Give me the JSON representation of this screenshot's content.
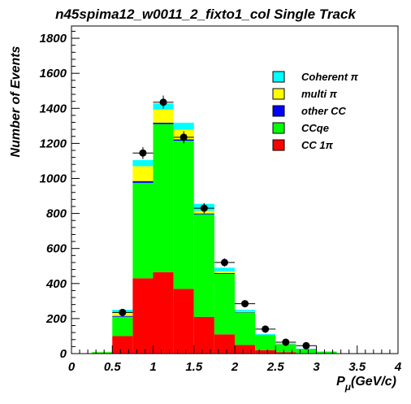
{
  "chart_data": {
    "type": "bar",
    "stacked": true,
    "title": "n45spima12_w0011_2_fixto1_col Single Track",
    "xlabel": "P_{μ}(GeV/c)",
    "xlabel_main": "P",
    "xlabel_sub": "μ",
    "xlabel_unit": "(GeV/c)",
    "ylabel": "Number of Events",
    "xlim": [
      0,
      4
    ],
    "ylim": [
      0,
      1870
    ],
    "x_ticks": [
      0,
      0.5,
      1,
      1.5,
      2,
      2.5,
      3,
      3.5,
      4
    ],
    "x_tick_labels": [
      "0",
      "0.5",
      "1",
      "1.5",
      "2",
      "2.5",
      "3",
      "3.5",
      "4"
    ],
    "y_ticks": [
      0,
      200,
      400,
      600,
      800,
      1000,
      1200,
      1400,
      1600,
      1800
    ],
    "y_tick_labels": [
      "0",
      "200",
      "400",
      "600",
      "800",
      "1000",
      "1200",
      "1400",
      "1600",
      "1800"
    ],
    "bin_edges": [
      0.25,
      0.5,
      0.75,
      1.0,
      1.25,
      1.5,
      1.75,
      2.0,
      2.25,
      2.5,
      2.75,
      3.0,
      3.25
    ],
    "bin_centers": [
      0.375,
      0.625,
      0.875,
      1.125,
      1.375,
      1.625,
      1.875,
      2.125,
      2.375,
      2.625,
      2.875,
      3.125
    ],
    "series": [
      {
        "name": "CC 1π",
        "color": "#ff0000",
        "values": [
          2,
          100,
          430,
          465,
          370,
          210,
          110,
          50,
          20,
          8,
          3,
          1
        ]
      },
      {
        "name": "CCqe",
        "color": "#00ff00",
        "values": [
          6,
          110,
          545,
          845,
          845,
          585,
          345,
          185,
          83,
          45,
          22,
          10
        ]
      },
      {
        "name": "other CC",
        "color": "#0000ff",
        "values": [
          0,
          5,
          10,
          8,
          8,
          5,
          5,
          3,
          2,
          1,
          1,
          0
        ]
      },
      {
        "name": "multi π",
        "color": "#ffff00",
        "values": [
          1,
          20,
          85,
          75,
          55,
          15,
          10,
          4,
          2,
          1,
          0,
          0
        ]
      },
      {
        "name": "Coherent π",
        "color": "#00ffff",
        "values": [
          1,
          15,
          35,
          35,
          40,
          40,
          20,
          8,
          5,
          3,
          2,
          1
        ]
      }
    ],
    "data_points": {
      "x": [
        0.625,
        0.875,
        1.125,
        1.375,
        1.625,
        1.875,
        2.125,
        2.375,
        2.625,
        2.875
      ],
      "y": [
        235,
        1145,
        1435,
        1235,
        830,
        520,
        285,
        140,
        65,
        45
      ],
      "yerr": [
        15,
        34,
        38,
        35,
        29,
        23,
        17,
        12,
        8,
        7
      ]
    },
    "legend": {
      "position": "top-right",
      "entries": [
        {
          "label": "Coherent π",
          "color": "#00ffff"
        },
        {
          "label": "multi π",
          "color": "#ffff00"
        },
        {
          "label": "other CC",
          "color": "#0000ff"
        },
        {
          "label": "CCqe",
          "color": "#00ff00"
        },
        {
          "label": "CC 1π",
          "color": "#ff0000"
        }
      ]
    },
    "grid": false
  }
}
